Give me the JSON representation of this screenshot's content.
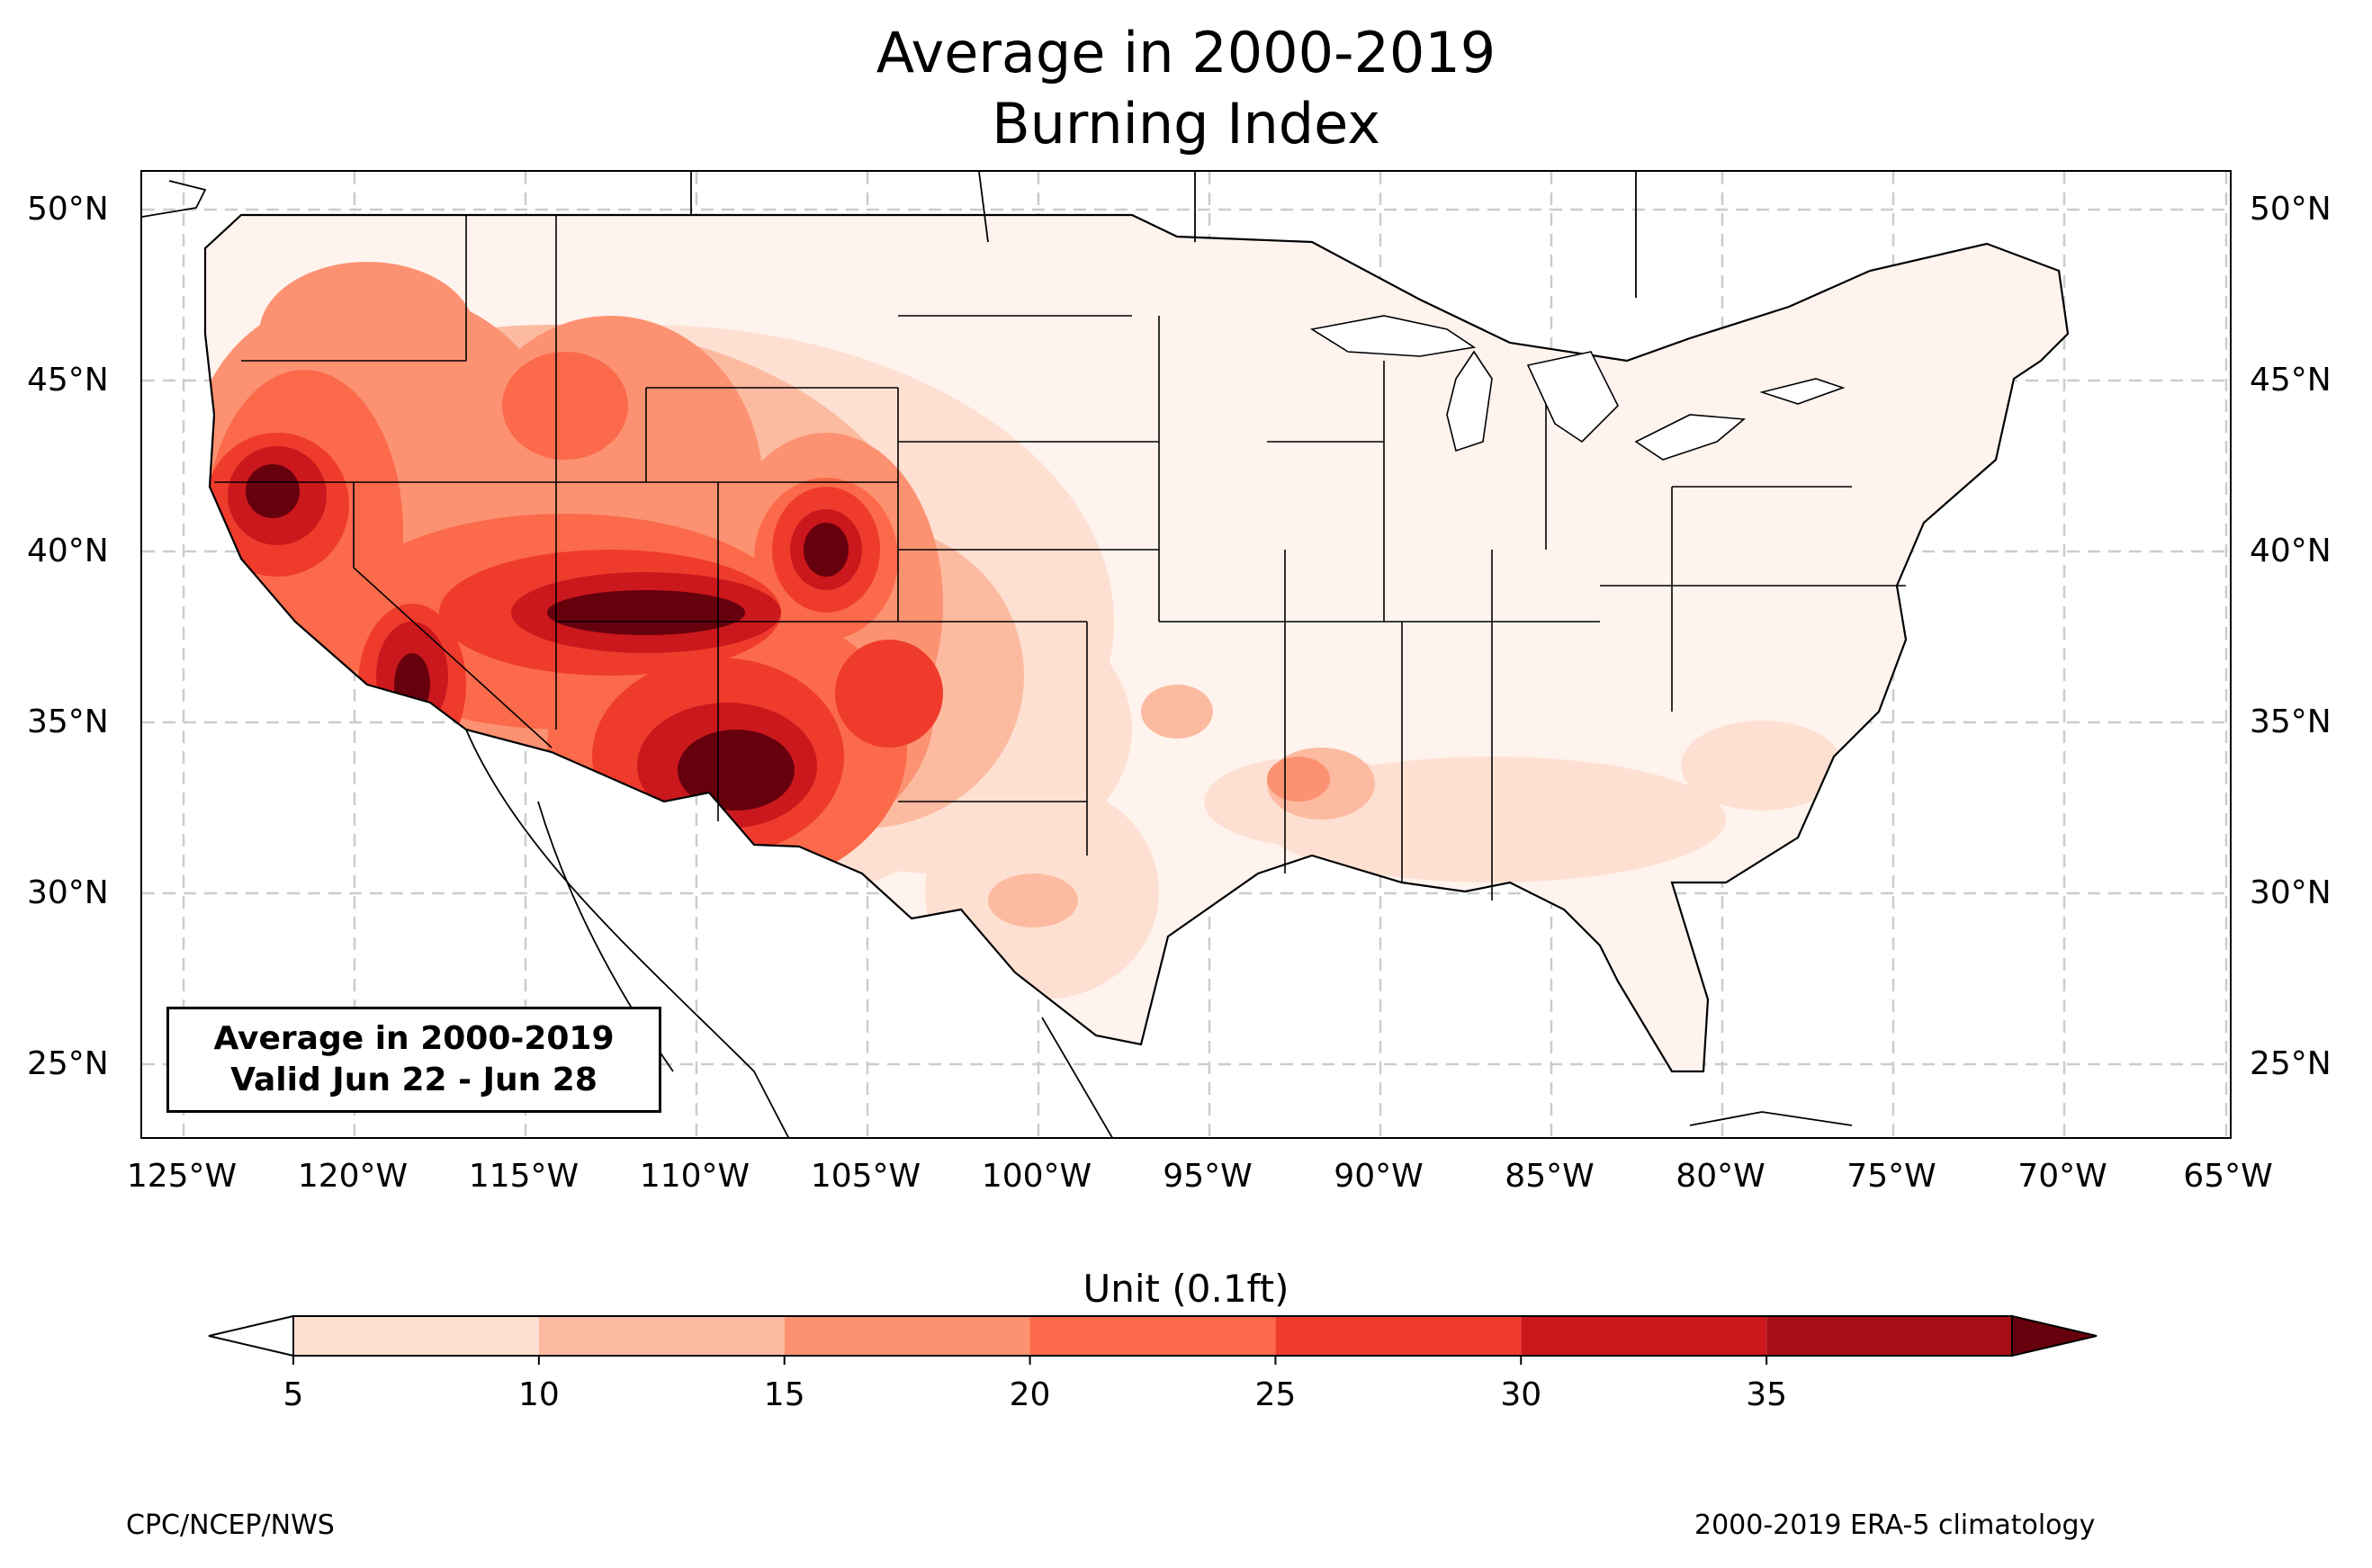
{
  "title": {
    "line1": "Average in 2000-2019",
    "line2": "Burning Index"
  },
  "map": {
    "lat_labels": [
      "50°N",
      "45°N",
      "40°N",
      "35°N",
      "30°N",
      "25°N"
    ],
    "lon_labels": [
      "125°W",
      "120°W",
      "115°W",
      "110°W",
      "105°W",
      "100°W",
      "95°W",
      "90°W",
      "85°W",
      "80°W",
      "75°W",
      "70°W",
      "65°W"
    ],
    "valid_box": {
      "line1": "Average in 2000-2019",
      "line2": "Valid Jun 22 - Jun 28"
    }
  },
  "colorbar": {
    "title": "Unit (0.1ft)",
    "ticks": [
      "5",
      "10",
      "15",
      "20",
      "25",
      "30",
      "35"
    ],
    "colors": [
      "#fee0d2",
      "#fcbba1",
      "#fc9272",
      "#fb6a4a",
      "#ef3b2c",
      "#cb181d",
      "#a50f15"
    ],
    "under_color": "#ffffff",
    "over_color": "#67000d"
  },
  "footer": {
    "left": "CPC/NCEP/NWS",
    "right": "2000-2019 ERA-5 climatology"
  }
}
